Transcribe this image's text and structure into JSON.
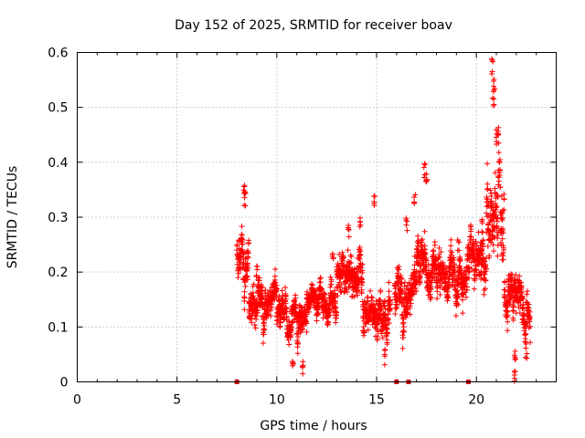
{
  "chart_data": {
    "type": "scatter",
    "title": "Day 152 of 2025, SRMTID for receiver boav",
    "xlabel": "GPS time / hours",
    "ylabel": "SRMTID / TECUs",
    "xlim": [
      0,
      24
    ],
    "ylim": [
      0,
      0.6
    ],
    "x_ticks": [
      0,
      5,
      10,
      15,
      20
    ],
    "x_tick_labels": [
      "0",
      "5",
      "10",
      "15",
      "20"
    ],
    "y_ticks": [
      0,
      0.1,
      0.2,
      0.3,
      0.4,
      0.5,
      0.6
    ],
    "y_tick_labels": [
      "0",
      "0.1",
      "0.2",
      "0.3",
      "0.4",
      "0.5",
      "0.6"
    ],
    "grid": true,
    "marker": "plus",
    "color": "#ff0000",
    "segments": [
      {
        "start": 8.0,
        "end": 8.6,
        "mean": 0.22,
        "spread": 0.06,
        "peaks": [
          [
            8.35,
            0.36
          ],
          [
            8.4,
            0.35
          ]
        ]
      },
      {
        "start": 8.6,
        "end": 10.0,
        "mean": 0.15,
        "spread": 0.04,
        "peaks": [
          [
            9.0,
            0.22
          ]
        ]
      },
      {
        "start": 10.0,
        "end": 11.5,
        "mean": 0.11,
        "spread": 0.04,
        "peaks": [
          [
            10.8,
            0.04
          ],
          [
            11.3,
            0.04
          ]
        ]
      },
      {
        "start": 11.5,
        "end": 13.0,
        "mean": 0.15,
        "spread": 0.04,
        "peaks": [
          [
            12.8,
            0.25
          ]
        ]
      },
      {
        "start": 13.0,
        "end": 14.3,
        "mean": 0.2,
        "spread": 0.05,
        "peaks": [
          [
            13.6,
            0.29
          ],
          [
            14.2,
            0.3
          ]
        ]
      },
      {
        "start": 14.3,
        "end": 15.7,
        "mean": 0.13,
        "spread": 0.05,
        "peaks": [
          [
            14.9,
            0.34
          ],
          [
            15.4,
            0.06
          ]
        ]
      },
      {
        "start": 15.9,
        "end": 17.0,
        "mean": 0.16,
        "spread": 0.05,
        "peaks": [
          [
            16.9,
            0.35
          ],
          [
            16.5,
            0.3
          ]
        ]
      },
      {
        "start": 17.0,
        "end": 18.5,
        "mean": 0.2,
        "spread": 0.05,
        "peaks": [
          [
            17.4,
            0.4
          ],
          [
            17.5,
            0.38
          ]
        ]
      },
      {
        "start": 18.5,
        "end": 19.5,
        "mean": 0.19,
        "spread": 0.05,
        "peaks": [
          [
            19.1,
            0.26
          ]
        ]
      },
      {
        "start": 19.5,
        "end": 20.5,
        "mean": 0.22,
        "spread": 0.06,
        "peaks": [
          [
            20.3,
            0.3
          ]
        ]
      },
      {
        "start": 20.5,
        "end": 21.4,
        "mean": 0.32,
        "spread": 0.09,
        "peaks": [
          [
            20.8,
            0.59
          ],
          [
            20.9,
            0.56
          ],
          [
            20.85,
            0.53
          ],
          [
            21.1,
            0.47
          ],
          [
            21.0,
            0.46
          ]
        ]
      },
      {
        "start": 21.4,
        "end": 22.3,
        "mean": 0.16,
        "spread": 0.05,
        "peaks": [
          [
            21.9,
            0.02
          ],
          [
            21.95,
            0.06
          ]
        ]
      },
      {
        "start": 22.3,
        "end": 22.7,
        "mean": 0.13,
        "spread": 0.05,
        "peaks": [
          [
            22.5,
            0.07
          ]
        ]
      }
    ],
    "zero_markers": [
      8.0,
      16.0,
      16.6,
      19.6
    ]
  }
}
